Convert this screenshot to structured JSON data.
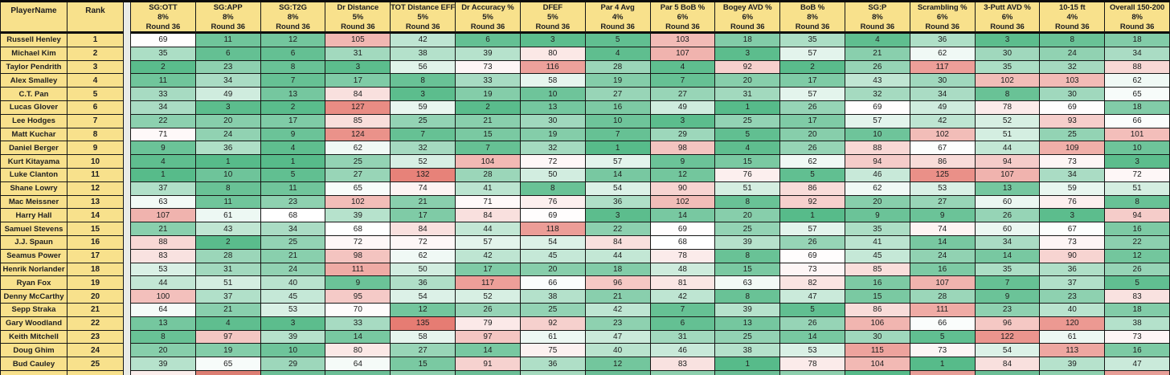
{
  "colors": {
    "header_bg": "#F8E18C",
    "scale_min_green": "#57BB8A",
    "scale_mid_white": "#FFFFFF",
    "scale_max_red": "#E67C73",
    "grid_border": "#161616",
    "gutter_bg": "#E9EBE7"
  },
  "scale": {
    "min": 1,
    "mid": 68,
    "max": 135
  },
  "table": {
    "frozen_headers": [
      "PlayerName",
      "Rank"
    ],
    "stat_columns": [
      {
        "label": "SG:OTT",
        "weight": "8%",
        "round": "Round 36"
      },
      {
        "label": "SG:APP",
        "weight": "8%",
        "round": "Round 36"
      },
      {
        "label": "SG:T2G",
        "weight": "8%",
        "round": "Round 36"
      },
      {
        "label": "Dr Distance",
        "weight": "5%",
        "round": "Round 36"
      },
      {
        "label": "TOT Distance EFF",
        "weight": "5%",
        "round": "Round 36"
      },
      {
        "label": "Dr Accuracy %",
        "weight": "5%",
        "round": "Round 36"
      },
      {
        "label": "DFEF",
        "weight": "5%",
        "round": "Round 36"
      },
      {
        "label": "Par 4 Avg",
        "weight": "4%",
        "round": "Round 36"
      },
      {
        "label": "Par 5 BoB %",
        "weight": "6%",
        "round": "Round 36"
      },
      {
        "label": "Bogey AVD %",
        "weight": "6%",
        "round": "Round 36"
      },
      {
        "label": "BoB %",
        "weight": "8%",
        "round": "Round 36"
      },
      {
        "label": "SG:P",
        "weight": "8%",
        "round": "Round 36"
      },
      {
        "label": "Scrambling %",
        "weight": "6%",
        "round": "Round 36"
      },
      {
        "label": "3-Putt AVD %",
        "weight": "6%",
        "round": "Round 36"
      },
      {
        "label": "10-15 ft",
        "weight": "4%",
        "round": "Round 36"
      },
      {
        "label": "Overall 150-200",
        "weight": "8%",
        "round": "Round 36"
      }
    ],
    "players": [
      {
        "name": "Russell Henley",
        "rank": 1,
        "values": [
          69,
          11,
          12,
          105,
          42,
          6,
          3,
          5,
          103,
          18,
          35,
          4,
          36,
          3,
          8,
          18
        ]
      },
      {
        "name": "Michael Kim",
        "rank": 2,
        "values": [
          35,
          6,
          6,
          31,
          38,
          39,
          80,
          4,
          107,
          3,
          57,
          21,
          62,
          30,
          24,
          34
        ]
      },
      {
        "name": "Taylor Pendrith",
        "rank": 3,
        "values": [
          2,
          23,
          8,
          3,
          56,
          73,
          116,
          28,
          4,
          92,
          2,
          26,
          117,
          35,
          32,
          88
        ]
      },
      {
        "name": "Alex Smalley",
        "rank": 4,
        "values": [
          11,
          34,
          7,
          17,
          8,
          33,
          58,
          19,
          7,
          20,
          17,
          43,
          30,
          102,
          103,
          62
        ]
      },
      {
        "name": "C.T. Pan",
        "rank": 5,
        "values": [
          33,
          49,
          13,
          84,
          3,
          19,
          10,
          27,
          27,
          31,
          57,
          32,
          34,
          8,
          30,
          65
        ]
      },
      {
        "name": "Lucas Glover",
        "rank": 6,
        "values": [
          34,
          3,
          2,
          127,
          59,
          2,
          13,
          16,
          49,
          1,
          26,
          69,
          49,
          78,
          69,
          18
        ]
      },
      {
        "name": "Lee Hodges",
        "rank": 7,
        "values": [
          22,
          20,
          17,
          85,
          25,
          21,
          30,
          10,
          3,
          25,
          17,
          57,
          42,
          52,
          93,
          66
        ]
      },
      {
        "name": "Matt Kuchar",
        "rank": 8,
        "values": [
          71,
          24,
          9,
          124,
          7,
          15,
          19,
          7,
          29,
          5,
          20,
          10,
          102,
          51,
          25,
          101
        ]
      },
      {
        "name": "Daniel Berger",
        "rank": 9,
        "values": [
          9,
          36,
          4,
          62,
          32,
          7,
          32,
          1,
          98,
          4,
          26,
          88,
          67,
          44,
          109,
          10
        ]
      },
      {
        "name": "Kurt Kitayama",
        "rank": 10,
        "values": [
          4,
          1,
          1,
          25,
          52,
          104,
          72,
          57,
          9,
          15,
          62,
          94,
          86,
          94,
          73,
          3
        ]
      },
      {
        "name": "Luke Clanton",
        "rank": 11,
        "values": [
          1,
          10,
          5,
          27,
          132,
          28,
          50,
          14,
          12,
          76,
          5,
          46,
          125,
          107,
          34,
          72
        ]
      },
      {
        "name": "Shane Lowry",
        "rank": 12,
        "values": [
          37,
          8,
          11,
          65,
          74,
          41,
          8,
          54,
          90,
          51,
          86,
          62,
          53,
          13,
          59,
          51
        ]
      },
      {
        "name": "Mac Meissner",
        "rank": 13,
        "values": [
          63,
          11,
          23,
          102,
          21,
          71,
          76,
          36,
          102,
          8,
          92,
          20,
          27,
          60,
          76,
          8
        ]
      },
      {
        "name": "Harry Hall",
        "rank": 14,
        "values": [
          107,
          61,
          68,
          39,
          17,
          84,
          69,
          3,
          14,
          20,
          1,
          9,
          9,
          26,
          3,
          94
        ]
      },
      {
        "name": "Samuel Stevens",
        "rank": 15,
        "values": [
          21,
          43,
          34,
          68,
          84,
          44,
          118,
          22,
          69,
          25,
          57,
          35,
          74,
          60,
          67,
          16
        ]
      },
      {
        "name": "J.J. Spaun",
        "rank": 16,
        "values": [
          88,
          2,
          25,
          72,
          72,
          57,
          54,
          84,
          68,
          39,
          26,
          41,
          14,
          34,
          73,
          22
        ]
      },
      {
        "name": "Seamus Power",
        "rank": 17,
        "values": [
          83,
          28,
          21,
          98,
          62,
          42,
          45,
          44,
          78,
          8,
          69,
          45,
          24,
          14,
          90,
          12
        ]
      },
      {
        "name": "Henrik Norlander",
        "rank": 18,
        "values": [
          53,
          31,
          24,
          111,
          50,
          17,
          20,
          18,
          48,
          15,
          73,
          85,
          16,
          35,
          36,
          26
        ]
      },
      {
        "name": "Ryan Fox",
        "rank": 19,
        "values": [
          44,
          51,
          40,
          9,
          36,
          117,
          66,
          96,
          81,
          63,
          82,
          16,
          107,
          7,
          37,
          5
        ]
      },
      {
        "name": "Denny McCarthy",
        "rank": 20,
        "values": [
          100,
          37,
          45,
          95,
          54,
          52,
          38,
          21,
          42,
          8,
          47,
          15,
          28,
          9,
          23,
          83
        ]
      },
      {
        "name": "Sepp Straka",
        "rank": 21,
        "values": [
          64,
          21,
          53,
          70,
          12,
          26,
          25,
          42,
          7,
          39,
          5,
          86,
          111,
          23,
          40,
          18
        ]
      },
      {
        "name": "Gary Woodland",
        "rank": 22,
        "values": [
          13,
          4,
          3,
          33,
          135,
          79,
          92,
          23,
          6,
          13,
          26,
          106,
          66,
          96,
          120,
          38
        ]
      },
      {
        "name": "Keith Mitchell",
        "rank": 23,
        "values": [
          8,
          97,
          39,
          14,
          58,
          97,
          61,
          47,
          31,
          25,
          14,
          30,
          5,
          122,
          61,
          73
        ]
      },
      {
        "name": "Doug Ghim",
        "rank": 24,
        "values": [
          20,
          19,
          10,
          80,
          27,
          14,
          75,
          40,
          46,
          38,
          53,
          115,
          73,
          54,
          113,
          16
        ]
      },
      {
        "name": "Bud Cauley",
        "rank": 25,
        "values": [
          39,
          65,
          29,
          64,
          15,
          91,
          36,
          12,
          83,
          1,
          78,
          104,
          1,
          84,
          39,
          47
        ]
      }
    ],
    "partial_row_tints": [
      "#FBEDEB",
      "#DD7E73",
      "#6CBF97",
      "#6CBF97",
      "#8ED0AE",
      "#6CBF97",
      "#A5DABE",
      "#6CBF97",
      "#8ED0AE",
      "#6CBF97",
      "#8ED0AE",
      "#57BB8A",
      "#E79E97",
      "#6CBF97",
      "#8ED0AE",
      "#E79E97"
    ]
  }
}
